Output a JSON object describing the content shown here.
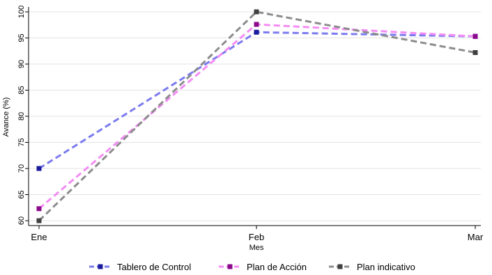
{
  "chart_data": {
    "type": "line",
    "categories": [
      "Ene",
      "Feb",
      "Mar"
    ],
    "series": [
      {
        "name": "Tablero de Control",
        "values": [
          70.0,
          96.1,
          95.3
        ],
        "line_color": "#7b7bef",
        "marker_color": "#1a1a9c"
      },
      {
        "name": "Plan de Acción",
        "values": [
          62.3,
          97.6,
          95.3
        ],
        "line_color": "#f48cf4",
        "marker_color": "#8b0a8b"
      },
      {
        "name": "Plan indicativo",
        "values": [
          60.0,
          100.0,
          92.2
        ],
        "line_color": "#8c8c8c",
        "marker_color": "#404040"
      }
    ],
    "xlabel": "Mes",
    "ylabel": "Avance (%)",
    "ylim": [
      60,
      100
    ],
    "yticks": [
      60,
      65,
      70,
      75,
      80,
      85,
      90,
      95,
      100
    ],
    "grid": true,
    "legend_position": "bottom"
  }
}
